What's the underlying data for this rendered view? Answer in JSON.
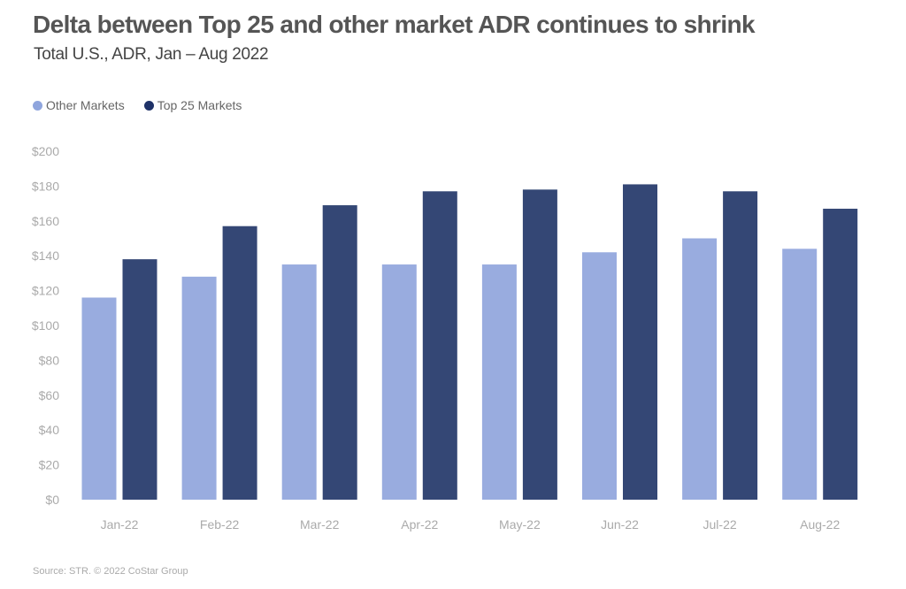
{
  "title": "Delta between Top 25 and other market ADR continues to shrink",
  "subtitle": "Total U.S., ADR, Jan – Aug 2022",
  "source": "Source: STR. © 2022 CoStar Group",
  "colors": {
    "other": "#99acdf",
    "top25": "#344775",
    "other_legend": "#8fa5dd",
    "top25_legend": "#1f3268"
  },
  "chart_data": {
    "type": "bar",
    "title": "Delta between Top 25 and other market ADR continues to shrink",
    "subtitle": "Total U.S., ADR, Jan – Aug 2022",
    "xlabel": "",
    "ylabel": "",
    "ylim": [
      0,
      200
    ],
    "yticks": [
      0,
      20,
      40,
      60,
      80,
      100,
      120,
      140,
      160,
      180,
      200
    ],
    "ytick_labels": [
      "$0",
      "$20",
      "$40",
      "$60",
      "$80",
      "$100",
      "$120",
      "$140",
      "$160",
      "$180",
      "$200"
    ],
    "categories": [
      "Jan-22",
      "Feb-22",
      "Mar-22",
      "Apr-22",
      "May-22",
      "Jun-22",
      "Jul-22",
      "Aug-22"
    ],
    "legend_position": "top-left",
    "grid": false,
    "series": [
      {
        "name": "Other Markets",
        "values": [
          116,
          128,
          135,
          135,
          135,
          142,
          150,
          144
        ]
      },
      {
        "name": "Top 25 Markets",
        "values": [
          138,
          157,
          169,
          177,
          178,
          181,
          177,
          167
        ]
      }
    ]
  }
}
